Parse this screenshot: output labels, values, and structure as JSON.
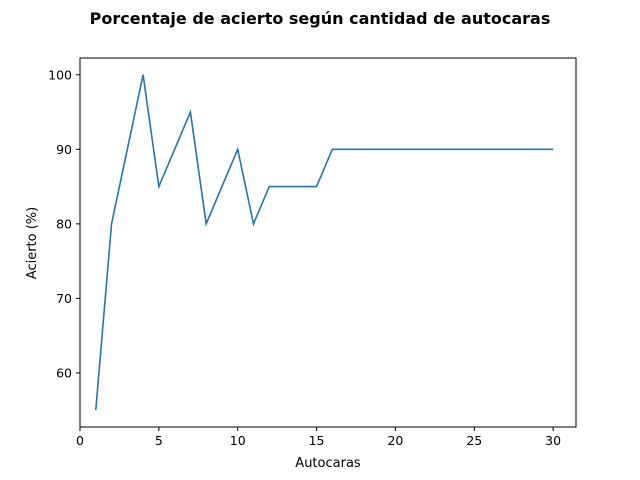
{
  "chart_data": {
    "type": "line",
    "title": "Porcentaje de acierto según cantidad de autocaras",
    "xlabel": "Autocaras",
    "ylabel": "Acierto (%)",
    "xlim": [
      0,
      31.45
    ],
    "ylim": [
      52.75,
      102.25
    ],
    "xticks": [
      0,
      5,
      10,
      15,
      20,
      25,
      30
    ],
    "yticks": [
      60,
      70,
      80,
      90,
      100
    ],
    "grid": false,
    "series": [
      {
        "color": "#1f77b4",
        "x": [
          1,
          2,
          3,
          4,
          5,
          6,
          7,
          8,
          9,
          10,
          11,
          12,
          13,
          14,
          15,
          16,
          17,
          18,
          19,
          20,
          21,
          22,
          23,
          24,
          25,
          26,
          27,
          28,
          29,
          30
        ],
        "y": [
          55,
          80,
          90,
          100,
          85,
          90,
          95,
          80,
          85,
          90,
          80,
          85,
          85,
          85,
          85,
          90,
          90,
          90,
          90,
          90,
          90,
          90,
          90,
          90,
          90,
          90,
          90,
          90,
          90,
          90
        ]
      }
    ]
  }
}
